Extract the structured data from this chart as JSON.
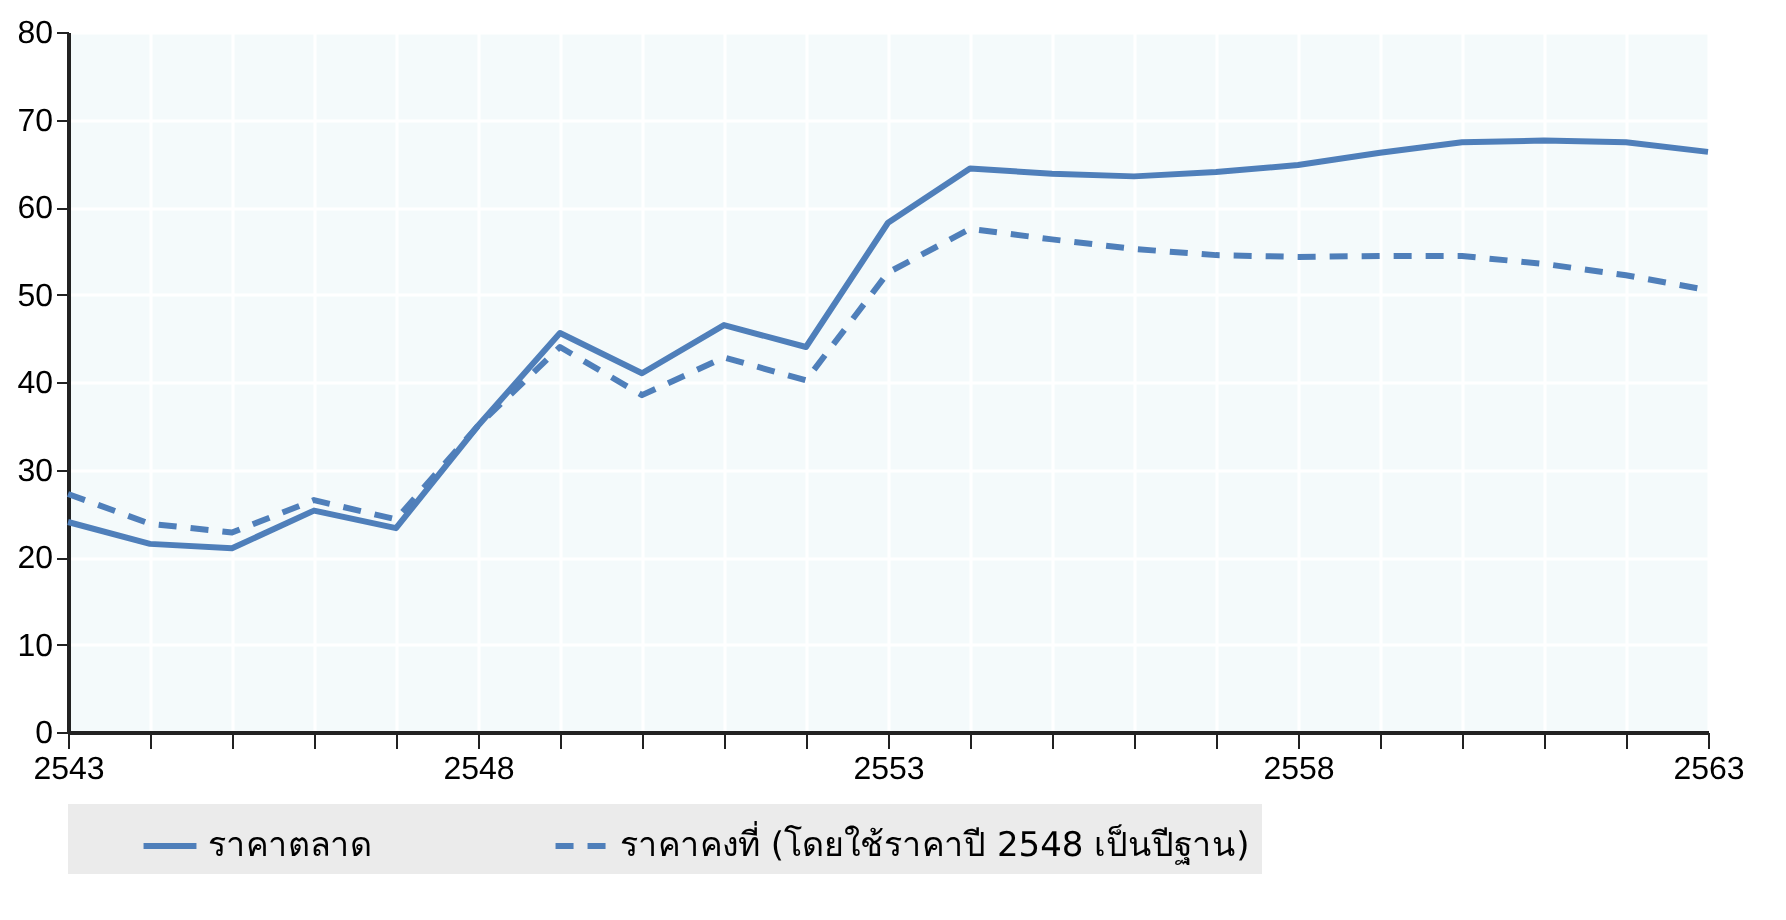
{
  "chart_data": {
    "type": "line",
    "x": [
      2543,
      2544,
      2545,
      2546,
      2547,
      2548,
      2549,
      2550,
      2551,
      2552,
      2553,
      2554,
      2555,
      2556,
      2557,
      2558,
      2559,
      2560,
      2561,
      2562,
      2563
    ],
    "series": [
      {
        "name": "ราคาตลาด",
        "color": "#4f7fba",
        "line_style": "solid",
        "values": [
          24,
          21.5,
          21,
          25.3,
          23.3,
          35,
          45.6,
          41,
          46.5,
          44,
          58.2,
          64.4,
          63.8,
          63.5,
          64,
          64.8,
          66.2,
          67.4,
          67.6,
          67.4,
          66.3
        ]
      },
      {
        "name": "ราคาคงที่ (โดยใช้ราคาปี 2548 เป็นปีฐาน)",
        "color": "#4f7fba",
        "line_style": "dashed",
        "values": [
          27.2,
          23.8,
          22.8,
          26.5,
          24.3,
          35,
          44,
          38.5,
          42.8,
          40.2,
          52.5,
          57.5,
          56.3,
          55.2,
          54.5,
          54.3,
          54.4,
          54.4,
          53.5,
          52.2,
          50.5
        ]
      }
    ],
    "xlim": [
      2543,
      2563
    ],
    "xticks": [
      2543,
      {
        "value": 2544,
        "label": null
      },
      {
        "value": 2545,
        "label": null
      },
      {
        "value": 2546,
        "label": null
      },
      {
        "value": 2547,
        "label": null
      },
      2548,
      {
        "value": 2549,
        "label": null
      },
      {
        "value": 2550,
        "label": null
      },
      {
        "value": 2551,
        "label": null
      },
      {
        "value": 2552,
        "label": null
      },
      2553,
      {
        "value": 2554,
        "label": null
      },
      {
        "value": 2555,
        "label": null
      },
      {
        "value": 2556,
        "label": null
      },
      {
        "value": 2557,
        "label": null
      },
      2558,
      {
        "value": 2559,
        "label": null
      },
      {
        "value": 2560,
        "label": null
      },
      {
        "value": 2561,
        "label": null
      },
      {
        "value": 2562,
        "label": null
      },
      2563
    ],
    "ylim": [
      0,
      80
    ],
    "yticks": [
      0,
      10,
      20,
      30,
      40,
      50,
      60,
      70,
      80
    ],
    "grid": true,
    "legend": "bottom",
    "marker": "none"
  }
}
